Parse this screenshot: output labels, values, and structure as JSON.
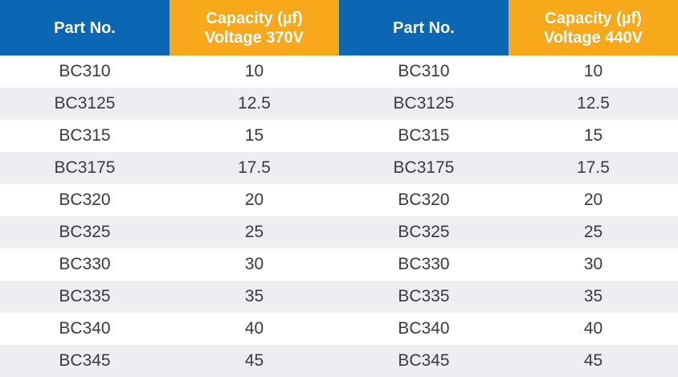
{
  "headers": {
    "left_part": "Part No.",
    "left_capacity_line1": "Capacity (µf)",
    "left_capacity_line2": "Voltage 370V",
    "right_part": "Part No.",
    "right_capacity_line1": "Capacity (µf)",
    "right_capacity_line2": "Voltage 440V"
  },
  "colors": {
    "header_blue": "#0b66b3",
    "header_orange": "#f7a81b",
    "row_alt": "#eeeef0"
  },
  "rows": [
    {
      "left_part": "BC310",
      "left_cap": "10",
      "right_part": "BC310",
      "right_cap": "10"
    },
    {
      "left_part": "BC3125",
      "left_cap": "12.5",
      "right_part": "BC3125",
      "right_cap": "12.5"
    },
    {
      "left_part": "BC315",
      "left_cap": "15",
      "right_part": "BC315",
      "right_cap": "15"
    },
    {
      "left_part": "BC3175",
      "left_cap": "17.5",
      "right_part": "BC3175",
      "right_cap": "17.5"
    },
    {
      "left_part": "BC320",
      "left_cap": "20",
      "right_part": "BC320",
      "right_cap": "20"
    },
    {
      "left_part": "BC325",
      "left_cap": "25",
      "right_part": "BC325",
      "right_cap": "25"
    },
    {
      "left_part": "BC330",
      "left_cap": "30",
      "right_part": "BC330",
      "right_cap": "30"
    },
    {
      "left_part": "BC335",
      "left_cap": "35",
      "right_part": "BC335",
      "right_cap": "35"
    },
    {
      "left_part": "BC340",
      "left_cap": "40",
      "right_part": "BC340",
      "right_cap": "40"
    },
    {
      "left_part": "BC345",
      "left_cap": "45",
      "right_part": "BC345",
      "right_cap": "45"
    }
  ]
}
